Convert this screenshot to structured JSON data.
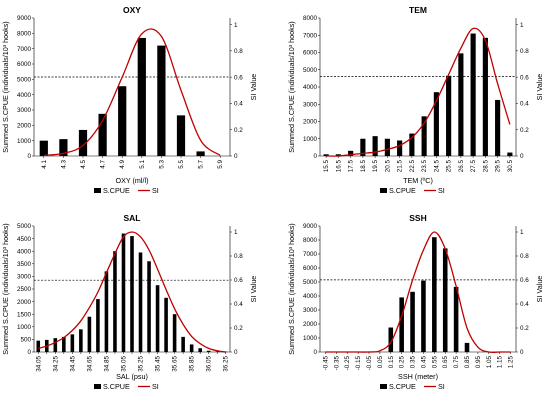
{
  "colors": {
    "bar": "#000000",
    "si": "#c00000",
    "ref": "#000000"
  },
  "legend": {
    "bar_label": "S.CPUE",
    "si_label": "SI"
  },
  "chart_data": [
    {
      "title": "OXY",
      "type": "bar+line",
      "xlabel": "OXY (ml/l)",
      "ylabel": "Summed S.CPUE (individuals/10³ hooks)",
      "y2label": "SI Value",
      "ylim": [
        0,
        9000
      ],
      "yticks": [
        0,
        1000,
        2000,
        3000,
        4000,
        5000,
        6000,
        7000,
        8000,
        9000
      ],
      "y2lim": [
        0,
        1.05
      ],
      "y2ticks": [
        "0",
        "0.2",
        "0.4",
        "0.6",
        "0.8",
        "1"
      ],
      "categories": [
        "4.1",
        "4.3",
        "4.5",
        "4.7",
        "4.9",
        "5.1",
        "5.3",
        "5.5",
        "5.7",
        "5.9"
      ],
      "values": [
        1000,
        1100,
        1700,
        2750,
        4550,
        7700,
        7200,
        2650,
        300,
        0
      ],
      "si": [
        0.005,
        0.02,
        0.08,
        0.27,
        0.6,
        0.93,
        0.91,
        0.5,
        0.12,
        0.005
      ],
      "ref_y": 5150
    },
    {
      "title": "TEM",
      "type": "bar+line",
      "xlabel": "TEM (ºC)",
      "ylabel": "Summed S.CPUE (individuals/10³ hooks)",
      "y2label": "SI Value",
      "ylim": [
        0,
        8000
      ],
      "yticks": [
        0,
        1000,
        2000,
        3000,
        4000,
        5000,
        6000,
        7000,
        8000
      ],
      "y2lim": [
        0,
        1.05
      ],
      "y2ticks": [
        "0",
        "0.2",
        "0.4",
        "0.6",
        "0.8",
        "1"
      ],
      "categories": [
        "15.5",
        "16.5",
        "17.5",
        "18.5",
        "19.5",
        "20.5",
        "21.5",
        "22.5",
        "23.5",
        "24.5",
        "25.5",
        "26.5",
        "27.5",
        "28.5",
        "29.5",
        "30.5"
      ],
      "values": [
        100,
        100,
        300,
        1000,
        1150,
        1000,
        900,
        1300,
        2300,
        3700,
        4650,
        5950,
        7100,
        6850,
        3250,
        200
      ],
      "si": [
        0.0,
        0.0,
        0.01,
        0.02,
        0.03,
        0.05,
        0.08,
        0.14,
        0.25,
        0.42,
        0.62,
        0.82,
        0.97,
        0.88,
        0.55,
        0.24
      ],
      "ref_y": 4600
    },
    {
      "title": "SAL",
      "type": "bar+line",
      "xlabel": "SAL (psu)",
      "ylabel": "Summed S.CPUE (individuals/10³ hooks)",
      "y2label": "SI Value",
      "ylim": [
        0,
        5000
      ],
      "yticks": [
        0,
        500,
        1000,
        1500,
        2000,
        2500,
        3000,
        3500,
        4000,
        4500,
        5000
      ],
      "y2lim": [
        0,
        1.05
      ],
      "y2ticks": [
        "0",
        "0.2",
        "0.4",
        "0.6",
        "0.8",
        "1"
      ],
      "categories": [
        "34.05",
        "34.15",
        "34.25",
        "34.35",
        "34.45",
        "34.55",
        "34.65",
        "34.75",
        "34.85",
        "34.95",
        "35.05",
        "35.15",
        "35.25",
        "35.35",
        "35.45",
        "35.55",
        "35.65",
        "35.75",
        "35.85",
        "35.95",
        "36.05",
        "36.15",
        "36.25"
      ],
      "labels": [
        "34.05",
        "34.25",
        "34.45",
        "34.65",
        "34.85",
        "35.05",
        "35.25",
        "35.45",
        "35.65",
        "35.85",
        "36.05",
        "36.25"
      ],
      "values": [
        450,
        480,
        550,
        600,
        700,
        900,
        1400,
        2100,
        3200,
        4000,
        4700,
        4600,
        3950,
        3600,
        2650,
        2150,
        1500,
        600,
        300,
        150,
        50,
        20,
        10
      ],
      "si": [
        0.03,
        0.05,
        0.08,
        0.12,
        0.18,
        0.26,
        0.37,
        0.5,
        0.66,
        0.82,
        0.96,
        1.0,
        0.96,
        0.85,
        0.69,
        0.52,
        0.36,
        0.23,
        0.13,
        0.07,
        0.03,
        0.01,
        0.0
      ],
      "ref_y": 2850
    },
    {
      "title": "SSH",
      "type": "bar+line",
      "xlabel": "SSH (meter)",
      "ylabel": "Summed S.CPUE (individuals/10³ hooks)",
      "y2label": "SI Value",
      "ylim": [
        0,
        9000
      ],
      "yticks": [
        0,
        1000,
        2000,
        3000,
        4000,
        5000,
        6000,
        7000,
        8000,
        9000
      ],
      "y2lim": [
        0,
        1.05
      ],
      "y2ticks": [
        "0",
        "0.2",
        "0.4",
        "0.6",
        "0.8",
        "1"
      ],
      "categories": [
        "-0.45",
        "-0.35",
        "-0.25",
        "-0.15",
        "-0.05",
        "0.05",
        "0.15",
        "0.25",
        "0.35",
        "0.45",
        "0.55",
        "0.65",
        "0.75",
        "0.85",
        "0.95",
        "1.05",
        "1.15",
        "1.25"
      ],
      "labels": [
        "-0.45",
        "-0.35",
        "-0.25",
        "-0.15",
        "-0.05",
        "0.05",
        "0.15",
        "0.25",
        "0.35",
        "0.45",
        "0.55",
        "0.65",
        "0.75",
        "0.85",
        "0.95",
        "1.05",
        "1.15",
        "1.25"
      ],
      "values": [
        0,
        0,
        0,
        0,
        0,
        0,
        1750,
        3900,
        4300,
        5100,
        8200,
        7400,
        4650,
        650,
        0,
        0,
        0,
        0
      ],
      "si": [
        0,
        0,
        0,
        0,
        0,
        0.01,
        0.08,
        0.3,
        0.6,
        0.85,
        1.0,
        0.86,
        0.55,
        0.2,
        0.04,
        0.0,
        0,
        0
      ],
      "ref_y": 5150
    }
  ]
}
